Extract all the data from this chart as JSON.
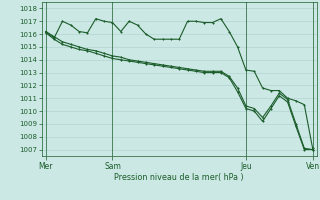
{
  "background_color": "#cce8e4",
  "grid_color": "#aacfcb",
  "line_color": "#1a5c2a",
  "tick_color": "#1a5c2a",
  "xlabel": "Pression niveau de la mer( hPa )",
  "ylim": [
    1006.5,
    1018.5
  ],
  "yticks": [
    1007,
    1008,
    1009,
    1010,
    1011,
    1012,
    1013,
    1014,
    1015,
    1016,
    1017,
    1018
  ],
  "day_labels": [
    "Mer",
    "Sam",
    "Jeu",
    "Ven"
  ],
  "day_positions": [
    0,
    8,
    24,
    32
  ],
  "n_points": 33,
  "series1": [
    1016.2,
    1015.8,
    1015.4,
    1015.2,
    1015.0,
    1014.8,
    1014.7,
    1014.5,
    1014.3,
    1014.2,
    1014.0,
    1013.9,
    1013.8,
    1013.7,
    1013.6,
    1013.5,
    1013.4,
    1013.3,
    1013.2,
    1013.1,
    1013.1,
    1013.1,
    1012.7,
    1011.8,
    1010.4,
    1010.2,
    1009.5,
    1010.4,
    1011.4,
    1010.9,
    1009.0,
    1007.1,
    1007.0
  ],
  "series2": [
    1016.1,
    1015.6,
    1015.2,
    1015.0,
    1014.8,
    1014.7,
    1014.5,
    1014.3,
    1014.1,
    1014.0,
    1013.9,
    1013.8,
    1013.7,
    1013.6,
    1013.5,
    1013.4,
    1013.3,
    1013.2,
    1013.1,
    1013.0,
    1013.0,
    1013.0,
    1012.6,
    1011.5,
    1010.2,
    1010.0,
    1009.2,
    1010.2,
    1011.2,
    1010.7,
    1008.8,
    1007.0,
    1007.0
  ],
  "series3": [
    1016.2,
    1015.7,
    1017.0,
    1016.7,
    1016.2,
    1016.1,
    1017.2,
    1017.0,
    1016.9,
    1016.2,
    1017.0,
    1016.7,
    1016.0,
    1015.6,
    1015.6,
    1015.6,
    1015.6,
    1017.0,
    1017.0,
    1016.9,
    1016.9,
    1017.2,
    1016.2,
    1015.0,
    1013.2,
    1013.1,
    1011.8,
    1011.6,
    1011.6,
    1011.0,
    1010.8,
    1010.5,
    1007.1
  ]
}
